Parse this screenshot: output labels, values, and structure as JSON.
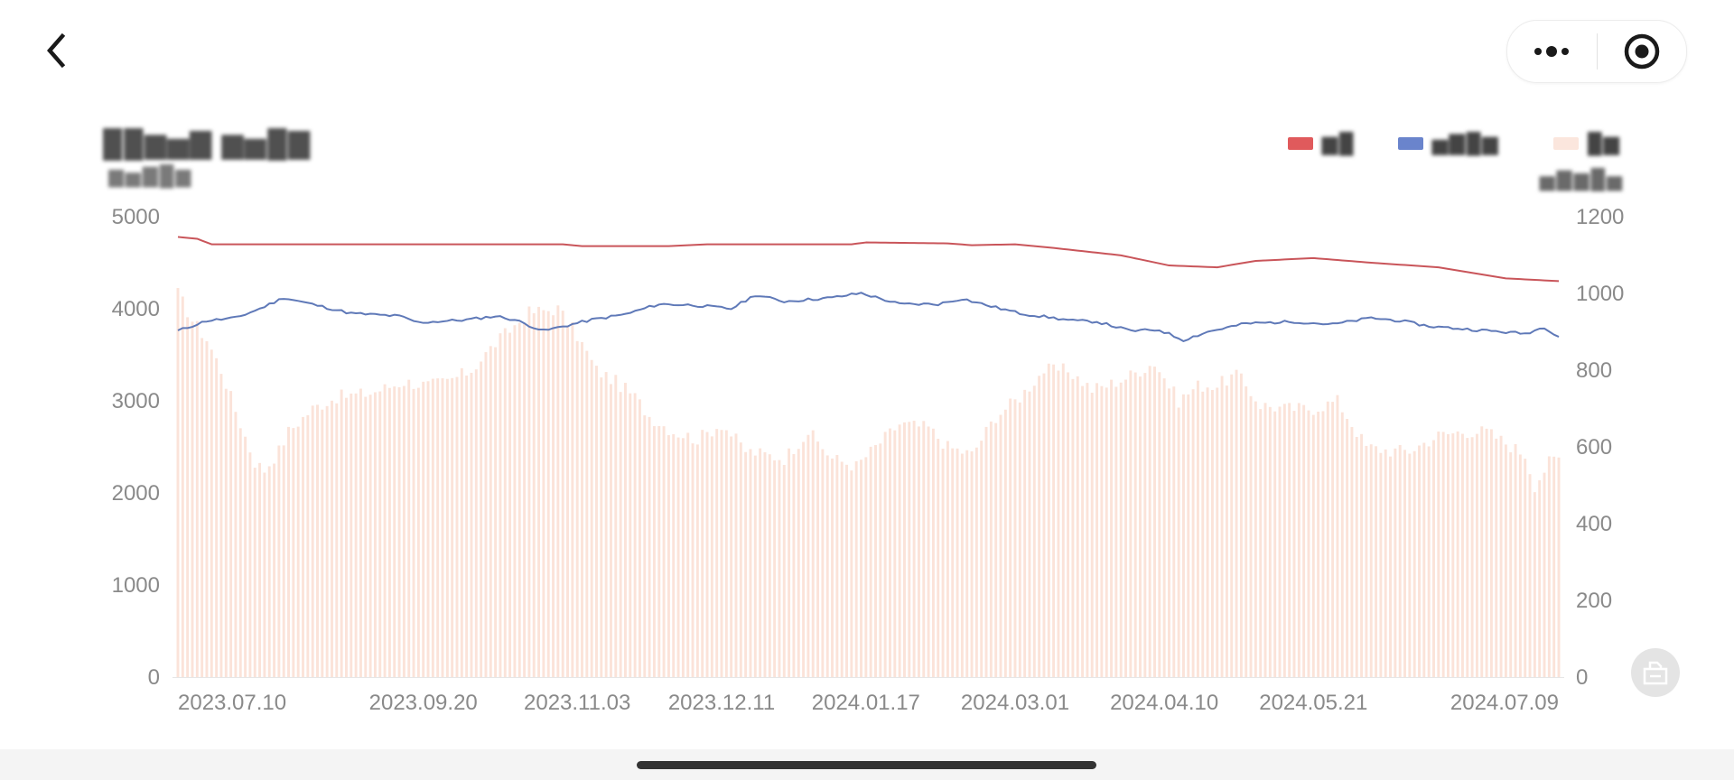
{
  "nav": {
    "back_icon": "chevron-left-icon",
    "more_icon": "more-dots-icon",
    "close_icon": "target-circle-icon"
  },
  "chart_data": {
    "type": "bar",
    "title": "",
    "title_blurred": true,
    "legend_position": "top-right",
    "legend": [
      {
        "name": "",
        "color": "#e05a5c",
        "style": "line",
        "axis": "left"
      },
      {
        "name": "",
        "color": "#6a84cc",
        "style": "line",
        "axis": "left"
      },
      {
        "name": "",
        "color": "#fbe6dd",
        "style": "bar",
        "axis": "right"
      }
    ],
    "y_left": {
      "min": 0,
      "max": 5000,
      "ticks": [
        "0",
        "1000",
        "2000",
        "3000",
        "4000",
        "5000"
      ]
    },
    "y_right": {
      "min": 0,
      "max": 1200,
      "ticks": [
        "0",
        "200",
        "400",
        "600",
        "800",
        "1000",
        "1200"
      ]
    },
    "x_tick_labels": [
      "2023.07.10",
      "2023.09.20",
      "2023.11.03",
      "2023.12.11",
      "2024.01.17",
      "2024.03.01",
      "2024.04.10",
      "2024.05.21",
      "2024.07.09"
    ],
    "x_tick_index": [
      0,
      51,
      83,
      113,
      143,
      174,
      205,
      236,
      266
    ],
    "n_points": 288,
    "red_series": {
      "axis": "left",
      "keypoints": [
        [
          0,
          4780
        ],
        [
          4,
          4760
        ],
        [
          7,
          4700
        ],
        [
          80,
          4700
        ],
        [
          84,
          4680
        ],
        [
          102,
          4680
        ],
        [
          110,
          4700
        ],
        [
          140,
          4700
        ],
        [
          143,
          4720
        ],
        [
          160,
          4710
        ],
        [
          165,
          4690
        ],
        [
          174,
          4700
        ],
        [
          182,
          4660
        ],
        [
          196,
          4580
        ],
        [
          206,
          4470
        ],
        [
          216,
          4450
        ],
        [
          224,
          4520
        ],
        [
          236,
          4550
        ],
        [
          248,
          4500
        ],
        [
          262,
          4450
        ],
        [
          276,
          4330
        ],
        [
          287,
          4300
        ]
      ]
    },
    "blue_series": {
      "axis": "left",
      "keypoints": [
        [
          0,
          3760
        ],
        [
          6,
          3870
        ],
        [
          12,
          3900
        ],
        [
          17,
          4000
        ],
        [
          22,
          4120
        ],
        [
          27,
          4060
        ],
        [
          36,
          3950
        ],
        [
          46,
          3920
        ],
        [
          50,
          3850
        ],
        [
          60,
          3880
        ],
        [
          66,
          3920
        ],
        [
          70,
          3880
        ],
        [
          76,
          3760
        ],
        [
          86,
          3880
        ],
        [
          93,
          3940
        ],
        [
          100,
          4050
        ],
        [
          107,
          4040
        ],
        [
          115,
          4000
        ],
        [
          120,
          4150
        ],
        [
          126,
          4080
        ],
        [
          136,
          4120
        ],
        [
          142,
          4170
        ],
        [
          150,
          4050
        ],
        [
          158,
          4050
        ],
        [
          163,
          4110
        ],
        [
          168,
          4040
        ],
        [
          175,
          3950
        ],
        [
          182,
          3900
        ],
        [
          186,
          3870
        ],
        [
          191,
          3860
        ],
        [
          198,
          3760
        ],
        [
          204,
          3770
        ],
        [
          209,
          3660
        ],
        [
          214,
          3750
        ],
        [
          222,
          3840
        ],
        [
          232,
          3860
        ],
        [
          240,
          3830
        ],
        [
          248,
          3900
        ],
        [
          254,
          3870
        ],
        [
          260,
          3810
        ],
        [
          270,
          3770
        ],
        [
          280,
          3730
        ],
        [
          284,
          3800
        ],
        [
          287,
          3700
        ]
      ]
    },
    "bar_series": {
      "axis": "right",
      "keypoints": [
        [
          0,
          1000
        ],
        [
          3,
          930
        ],
        [
          6,
          880
        ],
        [
          9,
          800
        ],
        [
          11,
          730
        ],
        [
          13,
          660
        ],
        [
          16,
          560
        ],
        [
          18,
          540
        ],
        [
          21,
          590
        ],
        [
          23,
          640
        ],
        [
          28,
          700
        ],
        [
          33,
          730
        ],
        [
          40,
          740
        ],
        [
          47,
          770
        ],
        [
          52,
          760
        ],
        [
          56,
          770
        ],
        [
          61,
          800
        ],
        [
          66,
          870
        ],
        [
          73,
          950
        ],
        [
          79,
          960
        ],
        [
          83,
          890
        ],
        [
          87,
          800
        ],
        [
          91,
          770
        ],
        [
          95,
          730
        ],
        [
          98,
          680
        ],
        [
          103,
          640
        ],
        [
          108,
          620
        ],
        [
          113,
          660
        ],
        [
          118,
          590
        ],
        [
          122,
          580
        ],
        [
          126,
          570
        ],
        [
          131,
          640
        ],
        [
          136,
          570
        ],
        [
          141,
          550
        ],
        [
          145,
          600
        ],
        [
          150,
          660
        ],
        [
          156,
          650
        ],
        [
          160,
          600
        ],
        [
          165,
          580
        ],
        [
          170,
          680
        ],
        [
          175,
          730
        ],
        [
          180,
          800
        ],
        [
          185,
          800
        ],
        [
          190,
          750
        ],
        [
          193,
          760
        ],
        [
          197,
          780
        ],
        [
          203,
          820
        ],
        [
          208,
          720
        ],
        [
          212,
          760
        ],
        [
          216,
          760
        ],
        [
          220,
          790
        ],
        [
          225,
          710
        ],
        [
          230,
          700
        ],
        [
          236,
          700
        ],
        [
          241,
          720
        ],
        [
          247,
          600
        ],
        [
          252,
          590
        ],
        [
          256,
          590
        ],
        [
          262,
          630
        ],
        [
          267,
          640
        ],
        [
          272,
          640
        ],
        [
          276,
          610
        ],
        [
          280,
          580
        ],
        [
          282,
          500
        ],
        [
          285,
          560
        ],
        [
          287,
          570
        ]
      ]
    }
  },
  "toolbar": {
    "save_icon": "save-image-icon"
  }
}
